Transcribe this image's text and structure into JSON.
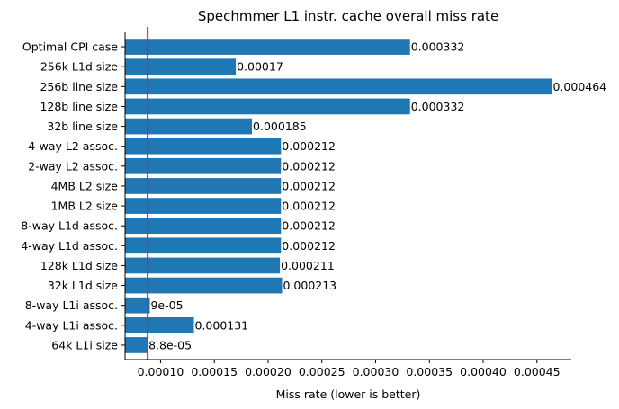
{
  "chart_data": {
    "type": "bar",
    "orientation": "horizontal",
    "title": "Spechmmer L1 instr. cache overall miss rate",
    "xlabel": "Miss rate (lower is better)",
    "ylabel": "",
    "categories": [
      "Optimal CPI case",
      "256k L1d size",
      "256b line size",
      "128b line size",
      "32b line size",
      "4-way L2 assoc.",
      "2-way L2 assoc.",
      "4MB L2 size",
      "1MB L2 size",
      "8-way L1d assoc.",
      "4-way L1d assoc.",
      "128k L1d size",
      "32k L1d size",
      "8-way L1i assoc.",
      "4-way L1i assoc.",
      "64k L1i size"
    ],
    "values": [
      0.000332,
      0.00017,
      0.000464,
      0.000332,
      0.000185,
      0.000212,
      0.000212,
      0.000212,
      0.000212,
      0.000212,
      0.000212,
      0.000211,
      0.000213,
      9e-05,
      0.000131,
      8.8e-05
    ],
    "value_labels": [
      "0.000332",
      "0.00017",
      "0.000464",
      "0.000332",
      "0.000185",
      "0.000212",
      "0.000212",
      "0.000212",
      "0.000212",
      "0.000212",
      "0.000212",
      "0.000211",
      "0.000213",
      "9e-05",
      "0.000131",
      "8.8e-05"
    ],
    "xlim": [
      6.7e-05,
      0.000482
    ],
    "xticks": [
      "0.00010",
      "0.00015",
      "0.00020",
      "0.00025",
      "0.00030",
      "0.00035",
      "0.00040",
      "0.00045"
    ],
    "xtick_values": [
      0.0001,
      0.00015,
      0.0002,
      0.00025,
      0.0003,
      0.00035,
      0.0004,
      0.00045
    ],
    "reference_line": 8.8e-05,
    "grid": false,
    "bar_color": "#1f77b4",
    "reference_line_color": "#d62728"
  }
}
